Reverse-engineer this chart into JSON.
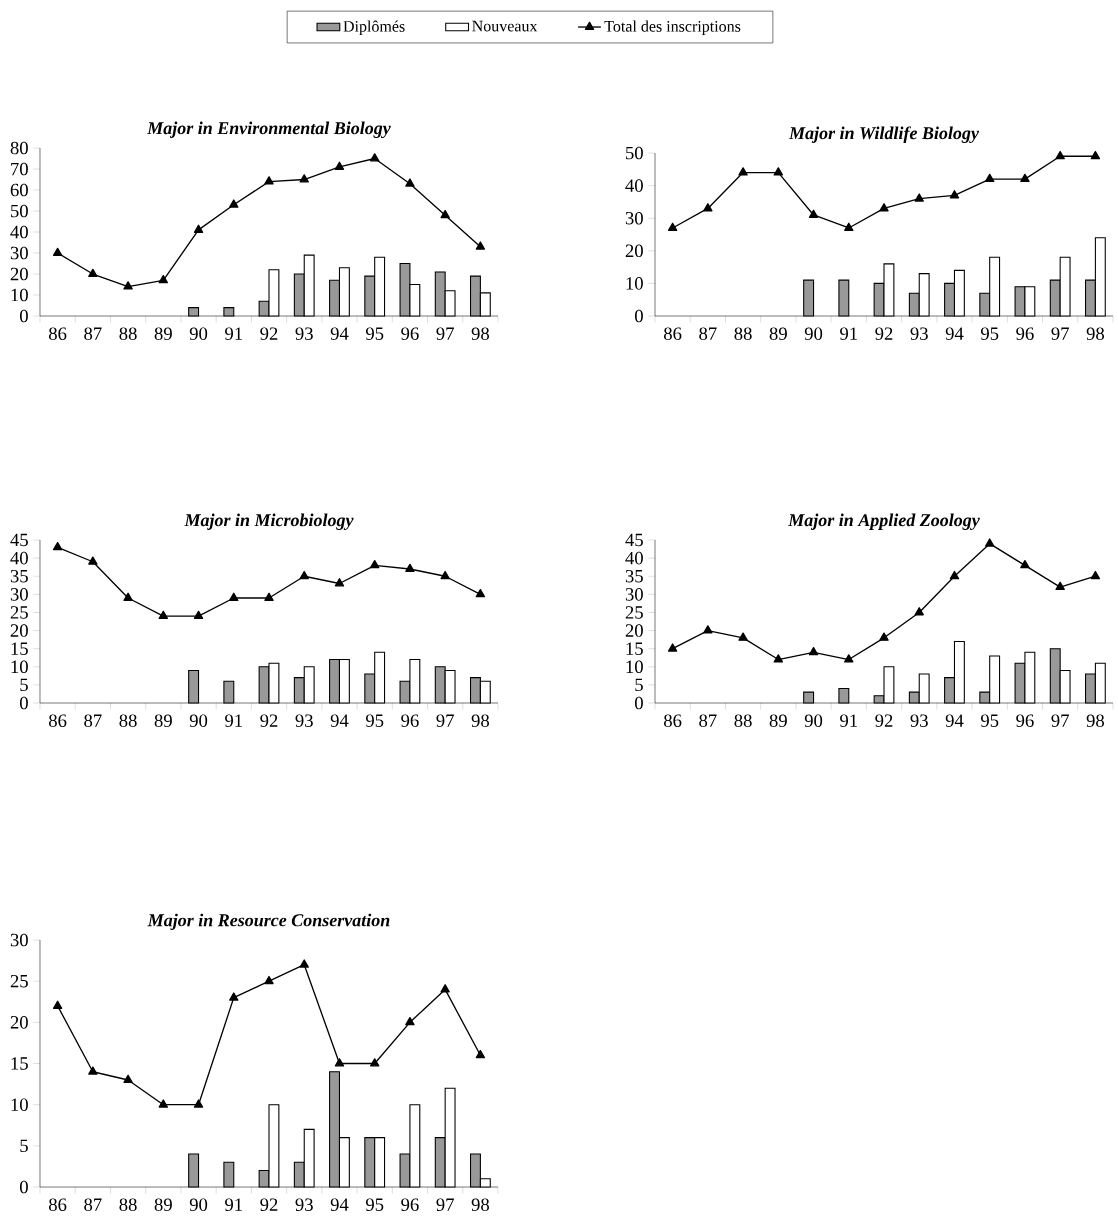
{
  "chart_data": [
    {
      "type": "bar",
      "title": "Major in Environmental Biology",
      "categories": [
        "86",
        "87",
        "88",
        "89",
        "90",
        "91",
        "92",
        "93",
        "94",
        "95",
        "96",
        "97",
        "98"
      ],
      "ylim": [
        0,
        80
      ],
      "yticks": [
        0,
        10,
        20,
        30,
        40,
        50,
        60,
        70,
        80
      ],
      "legend": "top",
      "marker": "triangle",
      "series": [
        {
          "name": "Diplômés",
          "color": "#999999",
          "values": [
            null,
            null,
            null,
            null,
            4,
            4,
            7,
            20,
            17,
            19,
            25,
            21,
            19
          ]
        },
        {
          "name": "Nouveaux",
          "color": "#ffffff",
          "values": [
            null,
            null,
            null,
            null,
            null,
            null,
            22,
            29,
            23,
            28,
            15,
            12,
            11
          ]
        },
        {
          "name": "Total des inscriptions",
          "type": "line",
          "color": "#000000",
          "values": [
            30,
            20,
            14,
            17,
            41,
            53,
            64,
            65,
            71,
            75,
            63,
            48,
            33
          ]
        }
      ]
    },
    {
      "type": "bar",
      "title": "Major in Wildlife Biology",
      "categories": [
        "86",
        "87",
        "88",
        "89",
        "90",
        "91",
        "92",
        "93",
        "94",
        "95",
        "96",
        "97",
        "98"
      ],
      "ylim": [
        0,
        50
      ],
      "yticks": [
        0,
        10,
        20,
        30,
        40,
        50
      ],
      "marker": "triangle",
      "series": [
        {
          "color": "#999999",
          "values": [
            null,
            null,
            null,
            null,
            11,
            11,
            10,
            7,
            10,
            7,
            9,
            11,
            11
          ]
        },
        {
          "color": "#ffffff",
          "values": [
            null,
            null,
            null,
            null,
            null,
            null,
            16,
            13,
            14,
            18,
            9,
            18,
            24
          ]
        },
        {
          "type": "line",
          "color": "#000000",
          "values": [
            27,
            33,
            44,
            44,
            31,
            27,
            33,
            36,
            37,
            42,
            42,
            49,
            49
          ]
        }
      ]
    },
    {
      "type": "bar",
      "title": "Major in Microbiology",
      "categories": [
        "86",
        "87",
        "88",
        "89",
        "90",
        "91",
        "92",
        "93",
        "94",
        "95",
        "96",
        "97",
        "98"
      ],
      "ylim": [
        0,
        45
      ],
      "yticks": [
        0,
        5,
        10,
        15,
        20,
        25,
        30,
        35,
        40,
        45
      ],
      "marker": "triangle",
      "series": [
        {
          "color": "#999999",
          "values": [
            null,
            null,
            null,
            null,
            9,
            6,
            10,
            7,
            12,
            8,
            6,
            10,
            7
          ]
        },
        {
          "color": "#ffffff",
          "values": [
            null,
            null,
            null,
            null,
            null,
            null,
            11,
            10,
            12,
            14,
            12,
            9,
            6
          ]
        },
        {
          "type": "line",
          "color": "#000000",
          "values": [
            43,
            39,
            29,
            24,
            24,
            29,
            29,
            35,
            33,
            38,
            37,
            35,
            30
          ]
        }
      ]
    },
    {
      "type": "bar",
      "title": "Major in Applied Zoology",
      "categories": [
        "86",
        "87",
        "88",
        "89",
        "90",
        "91",
        "92",
        "93",
        "94",
        "95",
        "96",
        "97",
        "98"
      ],
      "ylim": [
        0,
        45
      ],
      "yticks": [
        0,
        5,
        10,
        15,
        20,
        25,
        30,
        35,
        40,
        45
      ],
      "marker": "triangle",
      "series": [
        {
          "color": "#999999",
          "values": [
            null,
            null,
            null,
            null,
            3,
            4,
            2,
            3,
            7,
            3,
            11,
            15,
            8
          ]
        },
        {
          "color": "#ffffff",
          "values": [
            null,
            null,
            null,
            null,
            null,
            null,
            10,
            8,
            17,
            13,
            14,
            9,
            11
          ]
        },
        {
          "type": "line",
          "color": "#000000",
          "values": [
            15,
            20,
            18,
            12,
            14,
            12,
            18,
            25,
            35,
            44,
            38,
            32,
            35
          ]
        }
      ]
    },
    {
      "type": "bar",
      "title": "Major in Resource Conservation",
      "categories": [
        "86",
        "87",
        "88",
        "89",
        "90",
        "91",
        "92",
        "93",
        "94",
        "95",
        "96",
        "97",
        "98"
      ],
      "ylim": [
        0,
        30
      ],
      "yticks": [
        0,
        5,
        10,
        15,
        20,
        25,
        30
      ],
      "marker": "triangle",
      "series": [
        {
          "color": "#999999",
          "values": [
            null,
            null,
            null,
            null,
            4,
            3,
            2,
            3,
            14,
            6,
            4,
            6,
            4
          ]
        },
        {
          "color": "#ffffff",
          "values": [
            null,
            null,
            null,
            null,
            null,
            null,
            10,
            7,
            6,
            6,
            10,
            12,
            1
          ]
        },
        {
          "type": "line",
          "color": "#000000",
          "values": [
            22,
            14,
            13,
            10,
            10,
            23,
            25,
            27,
            15,
            15,
            20,
            24,
            16
          ]
        }
      ]
    }
  ]
}
